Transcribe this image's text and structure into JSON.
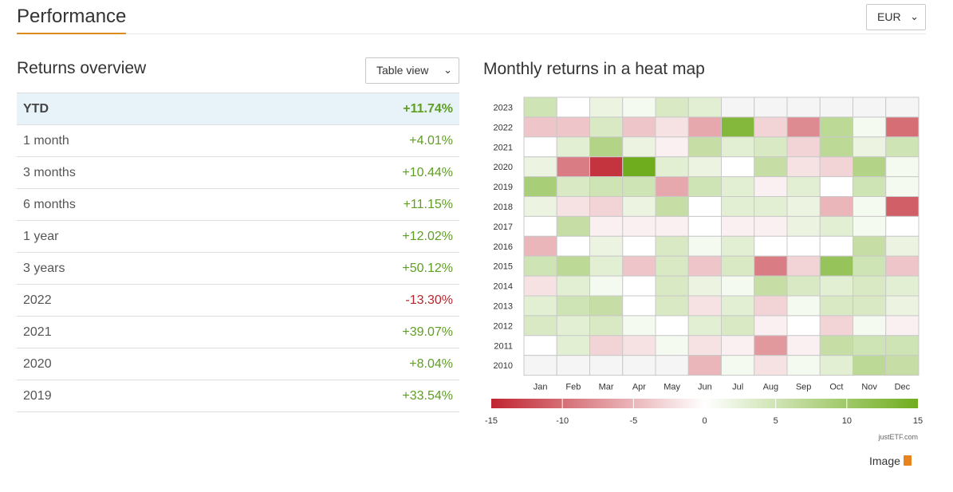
{
  "header": {
    "title": "Performance",
    "currency": "EUR"
  },
  "returns": {
    "title": "Returns overview",
    "view_select": "Table view",
    "rows": [
      {
        "label": "YTD",
        "value": "+11.74%"
      },
      {
        "label": "1 month",
        "value": "+4.01%"
      },
      {
        "label": "3 months",
        "value": "+10.44%"
      },
      {
        "label": "6 months",
        "value": "+11.15%"
      },
      {
        "label": "1 year",
        "value": "+12.02%"
      },
      {
        "label": "3 years",
        "value": "+50.12%"
      },
      {
        "label": "2022",
        "value": "-13.30%"
      },
      {
        "label": "2021",
        "value": "+39.07%"
      },
      {
        "label": "2020",
        "value": "+8.04%"
      },
      {
        "label": "2019",
        "value": "+33.54%"
      }
    ]
  },
  "heatmap_title": "Monthly returns in a heat map",
  "colors": {
    "negative": "#c02530",
    "neutral": "#ffffff",
    "positive": "#70ad1e",
    "accent": "#e08a1e"
  },
  "chart_data": {
    "type": "heatmap",
    "rows": [
      "2023",
      "2022",
      "2021",
      "2020",
      "2019",
      "2018",
      "2017",
      "2016",
      "2015",
      "2014",
      "2013",
      "2012",
      "2011",
      "2010"
    ],
    "columns": [
      "Jan",
      "Feb",
      "Mar",
      "Apr",
      "May",
      "Jun",
      "Jul",
      "Aug",
      "Sep",
      "Oct",
      "Nov",
      "Dec"
    ],
    "values": [
      [
        5,
        0,
        2,
        1,
        4,
        3,
        null,
        null,
        null,
        null,
        null,
        null
      ],
      [
        -4,
        -4,
        4,
        -4,
        -2,
        -6,
        13,
        -3,
        -8,
        7,
        1,
        -10
      ],
      [
        0,
        3,
        8,
        2,
        -1,
        6,
        3,
        4,
        -3,
        7,
        2,
        5
      ],
      [
        2,
        -9,
        -14,
        15,
        3,
        2,
        0,
        6,
        -2,
        -3,
        8,
        1
      ],
      [
        9,
        4,
        5,
        5,
        -6,
        5,
        3,
        -1,
        3,
        0,
        5,
        1
      ],
      [
        2,
        -2,
        -3,
        2,
        6,
        0,
        3,
        3,
        2,
        -5,
        1,
        -11
      ],
      [
        0,
        6,
        -1,
        -1,
        -1,
        0,
        -1,
        -1,
        2,
        3,
        1,
        0
      ],
      [
        -5,
        0,
        2,
        0,
        4,
        1,
        3,
        0,
        0,
        0,
        6,
        2
      ],
      [
        5,
        7,
        3,
        -4,
        4,
        -4,
        4,
        -9,
        -3,
        11,
        5,
        -4
      ],
      [
        -2,
        3,
        1,
        0,
        4,
        2,
        1,
        6,
        4,
        3,
        4,
        3
      ],
      [
        3,
        5,
        6,
        0,
        4,
        -2,
        3,
        -3,
        1,
        4,
        4,
        2
      ],
      [
        4,
        3,
        4,
        1,
        0,
        3,
        4,
        -1,
        0,
        -3,
        1,
        -1
      ],
      [
        0,
        3,
        -3,
        -2,
        1,
        -2,
        -1,
        -7,
        -1,
        6,
        5,
        5
      ],
      [
        null,
        null,
        null,
        null,
        null,
        -5,
        1,
        -2,
        1,
        3,
        7,
        6
      ]
    ],
    "scale": {
      "min": -15,
      "max": 15,
      "ticks": [
        -15,
        -10,
        -5,
        0,
        5,
        10,
        15
      ]
    },
    "watermark": "justETF.com"
  },
  "footer": {
    "image_link": "Image"
  }
}
